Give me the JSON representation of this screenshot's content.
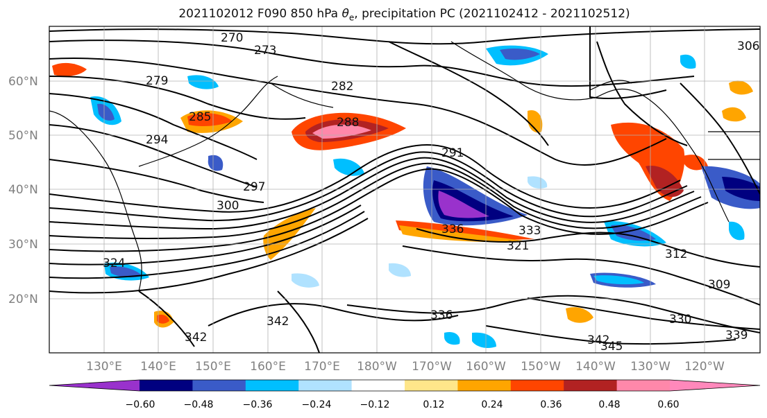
{
  "title": {
    "prefix": "2021102012 F090 850 hPa ",
    "theta": "θ",
    "sub": "e",
    "suffix": ", precipitation PC (2021102412 - 2021102512)"
  },
  "map": {
    "lat_labels": [
      "60°N",
      "50°N",
      "40°N",
      "30°N",
      "20°N"
    ],
    "lon_labels": [
      "130°E",
      "140°E",
      "150°E",
      "160°E",
      "170°E",
      "180°W",
      "170°W",
      "160°W",
      "150°W",
      "140°W",
      "130°W",
      "120°W"
    ],
    "contour_labels": [
      "270",
      "273",
      "279",
      "282",
      "285",
      "288",
      "291",
      "294",
      "297",
      "300",
      "309",
      "312",
      "321",
      "324",
      "330",
      "333",
      "336",
      "339",
      "342",
      "345",
      "342",
      "342",
      "336",
      "306"
    ]
  },
  "colorbar": {
    "ticks": [
      "−0.60",
      "−0.48",
      "−0.36",
      "−0.24",
      "−0.12",
      "0.12",
      "0.24",
      "0.36",
      "0.48",
      "0.60"
    ],
    "colors": [
      "#9932cc",
      "#000080",
      "#3a5bc8",
      "#00bfff",
      "#b0e2ff",
      "#ffffff",
      "#ffe68a",
      "#ffa500",
      "#ff4500",
      "#b22222",
      "#ff88aa",
      "#ff88bb"
    ]
  }
}
